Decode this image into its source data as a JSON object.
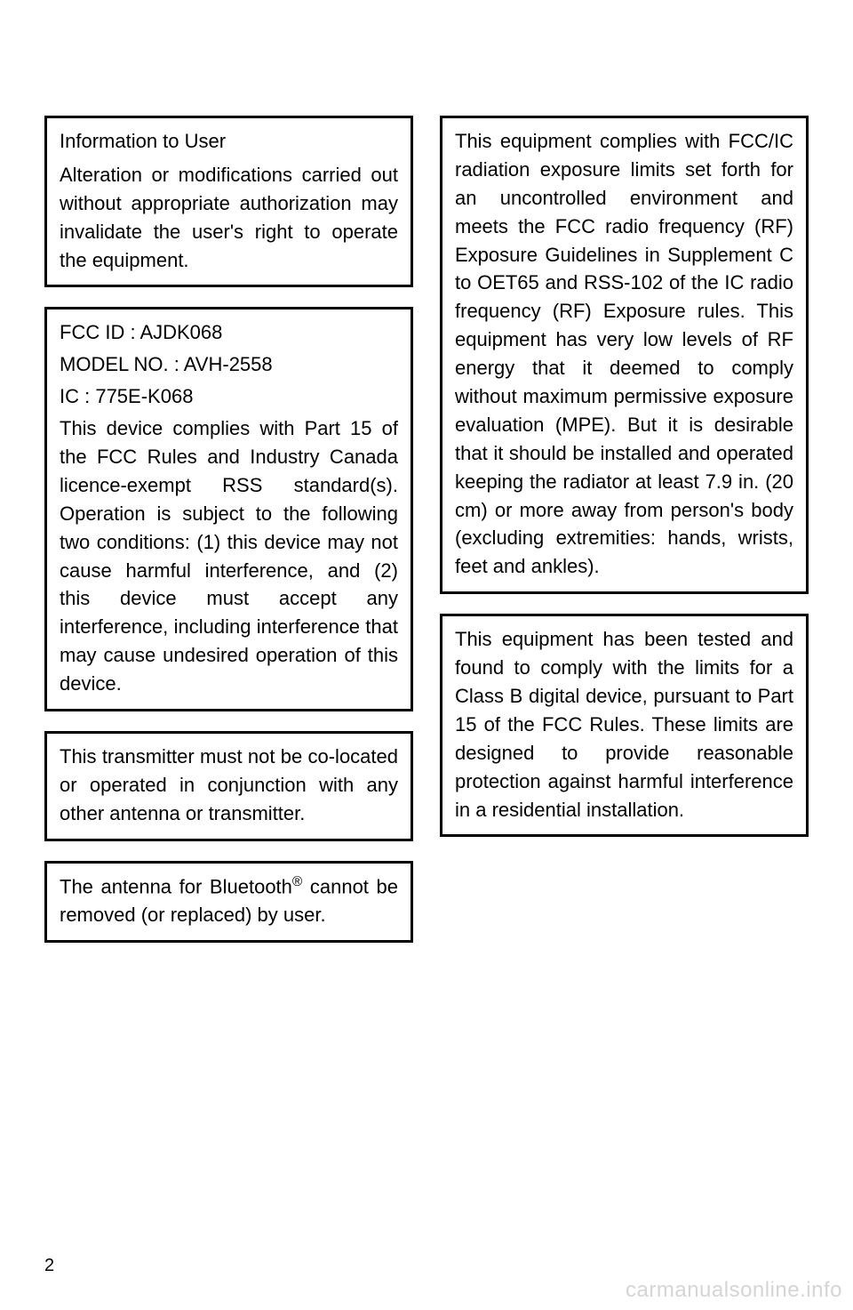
{
  "page_number": "2",
  "watermark": "carmanualsonline.info",
  "left_column": {
    "box1": {
      "title": "Information to User",
      "body": "Alteration or modifications carried out without appropriate authorization may invalidate the user's right to operate the equipment."
    },
    "box2": {
      "fcc": "FCC ID : AJDK068",
      "model": "MODEL NO. : AVH-2558",
      "ic": "IC : 775E-K068",
      "body": "This device complies with Part 15 of the FCC Rules and Industry Canada licence-exempt RSS standard(s). Operation is subject to the following two conditions: (1) this device may not cause harmful interference, and (2) this device must accept any interference, including interference that may cause undesired operation of this device."
    },
    "box3": {
      "body": "This transmitter must not be co-located or operated in conjunction with any other antenna or transmitter."
    },
    "box4": {
      "pre": "The antenna for Bluetooth",
      "sup": "®",
      "post": " cannot be removed (or replaced) by user."
    }
  },
  "right_column": {
    "box1": {
      "body": "This equipment complies with FCC/IC radiation exposure limits set forth for an uncontrolled environment and meets the FCC radio frequency (RF) Exposure Guidelines in Supplement C to OET65 and RSS-102 of the IC radio frequency (RF) Exposure rules. This equipment has very low levels of RF energy that it deemed to comply without maximum permissive exposure evaluation (MPE).  But it is desirable that it should be installed and operated keeping the radiator at least 7.9 in. (20 cm) or more away from person's body (excluding extremities: hands, wrists, feet and ankles)."
    },
    "box2": {
      "body": "This equipment has been tested and found to comply with the limits for a Class B digital device, pursuant to Part 15 of the FCC Rules. These limits are designed to provide reasonable protection against harmful interference in a residential installation."
    }
  }
}
